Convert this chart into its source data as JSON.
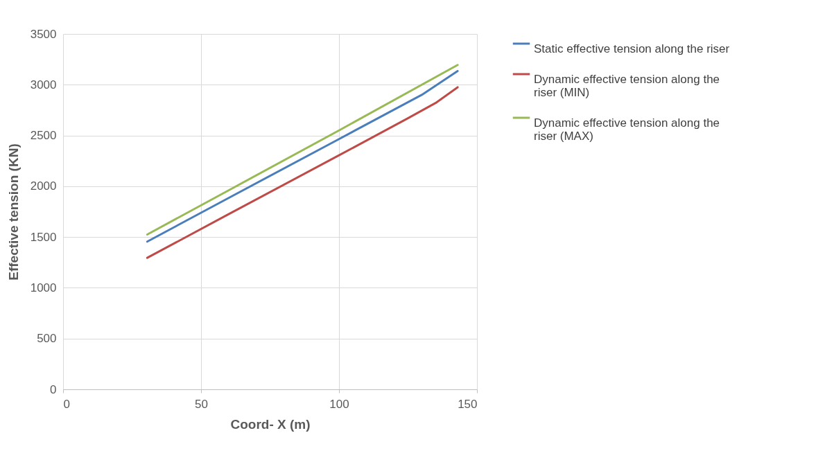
{
  "chart_data": {
    "type": "line",
    "xlabel": "Coord- X (m)",
    "ylabel": "Effective tension (KN)",
    "xlim": [
      0,
      150
    ],
    "xticks": [
      0,
      50,
      100,
      150
    ],
    "ylim": [
      0,
      3500
    ],
    "yticks": [
      0,
      500,
      1000,
      1500,
      2000,
      2500,
      3000,
      3500
    ],
    "grid": true,
    "legend": "right",
    "line_style": "solid",
    "marker": "none",
    "series": [
      {
        "name": "Static effective tension along the riser",
        "color": "#4a7ebb",
        "x": [
          30.5,
          60,
          100,
          130,
          143
        ],
        "values": [
          1455,
          1885,
          2465,
          2900,
          3135
        ]
      },
      {
        "name": "Dynamic effective tension along the riser (MIN)",
        "color": "#be4b48",
        "x": [
          30.5,
          60,
          100,
          125,
          135,
          143
        ],
        "values": [
          1295,
          1725,
          2305,
          2670,
          2820,
          2975
        ]
      },
      {
        "name": "Dynamic effective tension along the riser (MAX)",
        "color": "#98b954",
        "x": [
          30.5,
          60,
          100,
          143
        ],
        "values": [
          1525,
          1960,
          2550,
          3195
        ]
      }
    ]
  }
}
